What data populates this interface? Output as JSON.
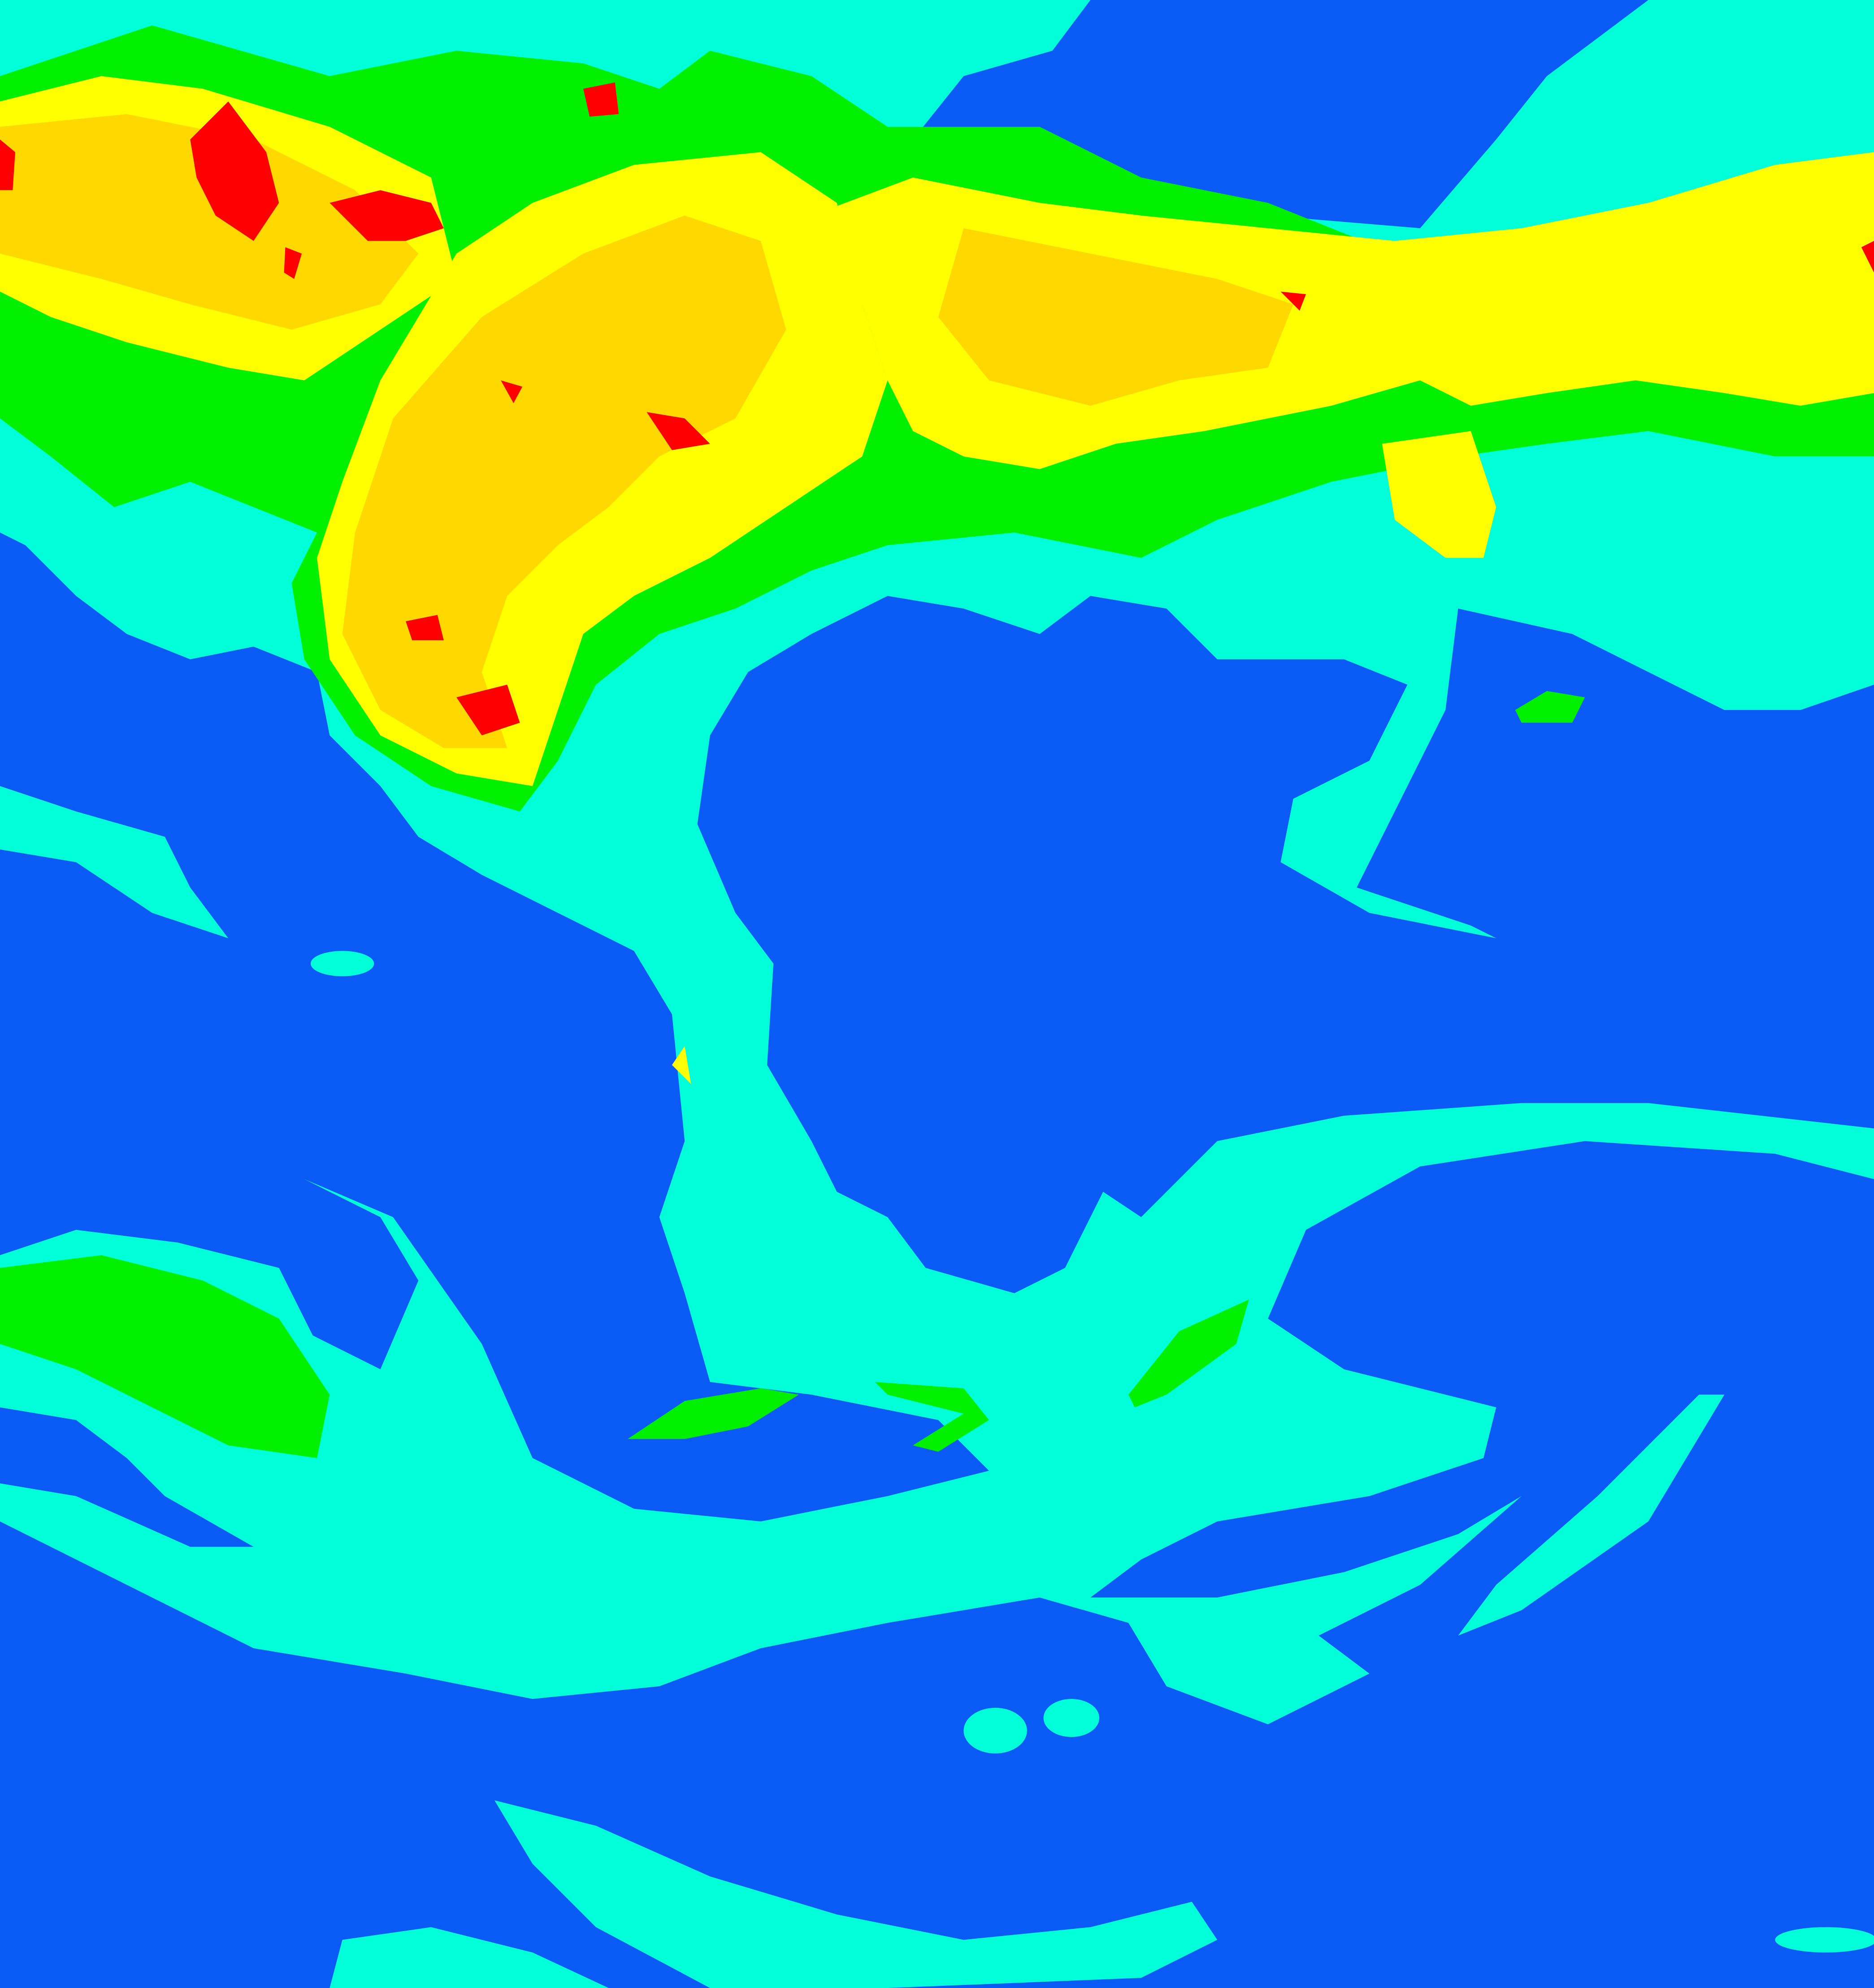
{
  "image": {
    "type": "false-color satellite classification",
    "colors": {
      "background": "#0a5af5",
      "class_1": "#00ffd8",
      "class_2": "#00f000",
      "class_3": "#ffff00",
      "class_4": "#ffd800",
      "class_5": "#ff0000"
    }
  }
}
